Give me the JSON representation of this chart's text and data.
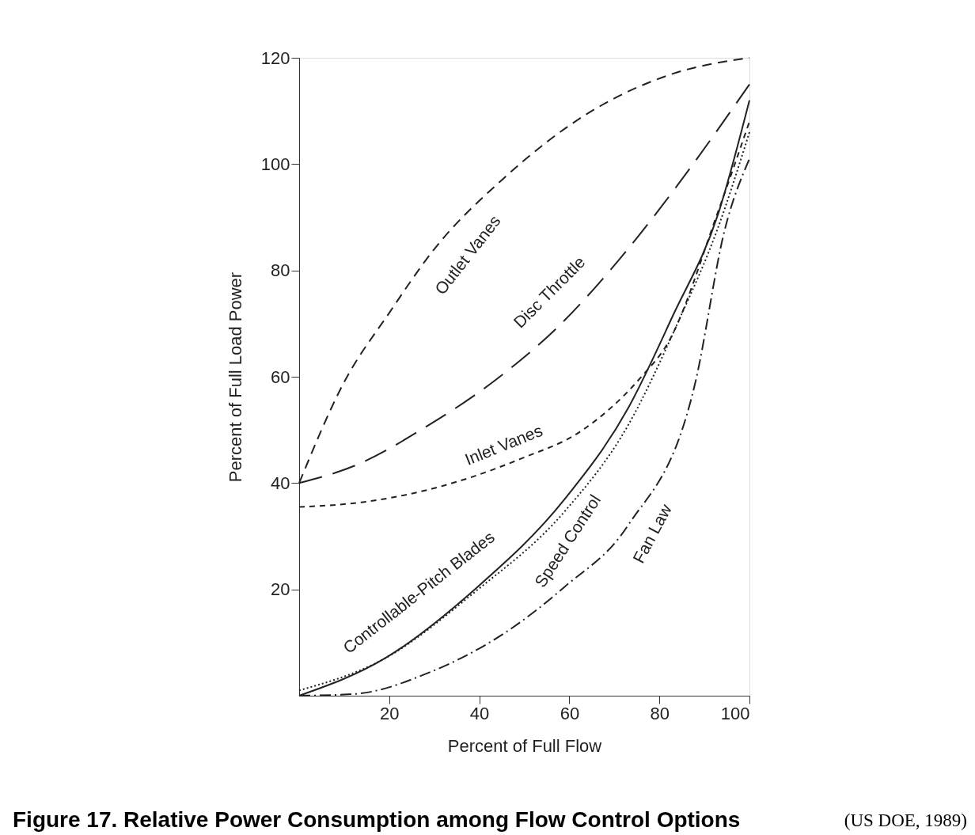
{
  "chart_data": {
    "type": "line",
    "title": "Figure 17. Relative Power Consumption among Flow Control Options",
    "annotations": [
      "(US DOE, 1989)"
    ],
    "xlabel": "Percent of Full Flow",
    "ylabel": "Percent of Full Load Power",
    "xlim": [
      0,
      100
    ],
    "ylim": [
      0,
      120
    ],
    "xticks": [
      20,
      40,
      60,
      80,
      100
    ],
    "yticks": [
      20,
      40,
      60,
      80,
      100,
      120
    ],
    "grid": false,
    "marker": "none",
    "series": [
      {
        "name": "Outlet Vanes",
        "color": "#222222",
        "line_style": "dashed",
        "x": [
          0,
          10,
          20,
          30,
          45,
          65,
          83,
          100
        ],
        "values": [
          40,
          59,
          72,
          84,
          97,
          110,
          117,
          120
        ]
      },
      {
        "name": "Disc Throttle",
        "color": "#222222",
        "line_style": "longdash",
        "x": [
          0,
          13,
          28,
          43,
          57,
          73,
          84,
          100
        ],
        "values": [
          40,
          43.5,
          50.5,
          59,
          69,
          84,
          96,
          115
        ]
      },
      {
        "name": "Inlet Vanes",
        "color": "#222222",
        "line_style": "shortdash",
        "x": [
          0,
          15,
          32,
          49,
          63,
          76,
          82,
          93,
          100
        ],
        "values": [
          35.5,
          36.5,
          39.5,
          44.5,
          50,
          60,
          66.5,
          91,
          108
        ]
      },
      {
        "name": "Controllable-Pitch Blades",
        "color": "#222222",
        "line_style": "solid",
        "x": [
          0,
          19,
          39,
          59,
          73,
          83,
          93,
          100
        ],
        "values": [
          0,
          7,
          20,
          37,
          54,
          71.5,
          90.5,
          112
        ]
      },
      {
        "name": "Speed Control",
        "color": "#222222",
        "line_style": "dotted",
        "x": [
          0,
          19,
          39,
          59,
          73,
          84,
          93,
          100
        ],
        "values": [
          1,
          7,
          19.5,
          34.7,
          50.8,
          70,
          88,
          106
        ]
      },
      {
        "name": "Fan Law",
        "color": "#222222",
        "line_style": "dashdot",
        "x": [
          0,
          12,
          29,
          46,
          59,
          73,
          88,
          94.5,
          100
        ],
        "values": [
          0,
          0.3,
          4.4,
          12,
          20.5,
          32,
          59,
          87.6,
          101
        ]
      }
    ]
  }
}
